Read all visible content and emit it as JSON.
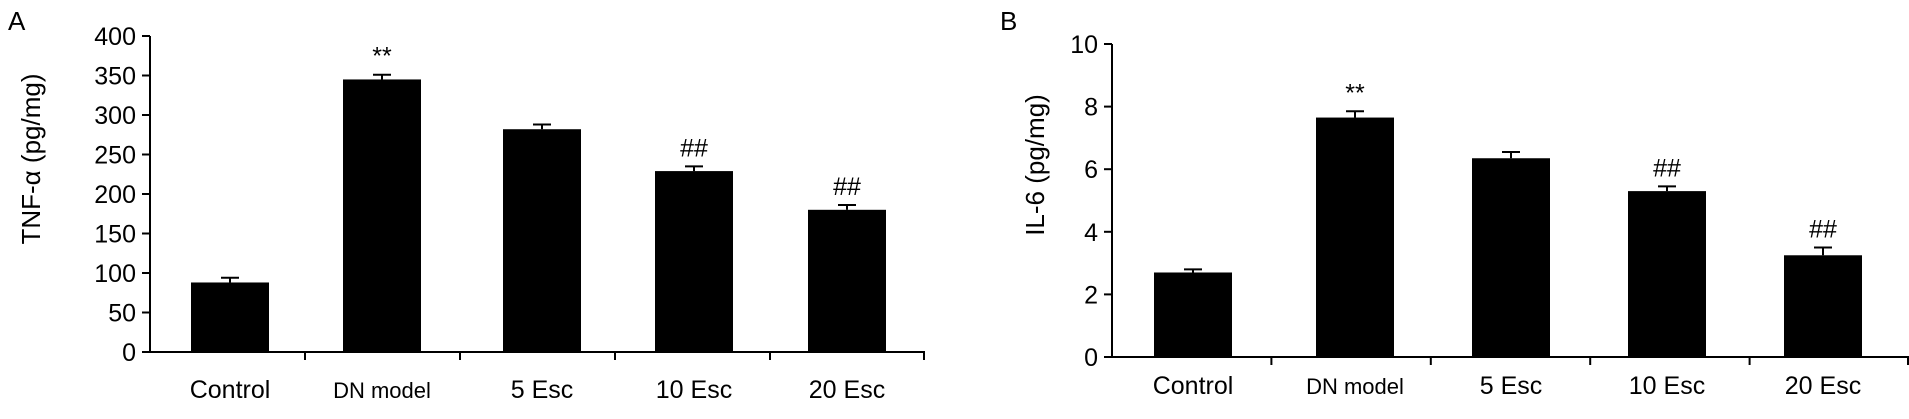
{
  "chart_data": [
    {
      "panel": "A",
      "type": "bar",
      "ylabel": "TNF-α (pg/mg)",
      "ylim": [
        0,
        400
      ],
      "yticks": [
        "0",
        "50",
        "100",
        "150",
        "200",
        "250",
        "300",
        "350",
        "400"
      ],
      "categories": [
        "Control",
        "DN model",
        "5 Esc",
        "10 Esc",
        "20 Esc"
      ],
      "values": [
        88,
        345,
        282,
        229,
        180
      ],
      "errors": [
        6,
        6,
        6,
        6,
        6
      ],
      "annotations": [
        "",
        "**",
        "",
        "##",
        "##"
      ],
      "grid": false,
      "legend": "none",
      "bar_color": "#000000"
    },
    {
      "panel": "B",
      "type": "bar",
      "ylabel": "IL-6 (pg/mg)",
      "ylim": [
        0,
        10
      ],
      "yticks": [
        "0",
        "2",
        "4",
        "6",
        "8",
        "10"
      ],
      "categories": [
        "Control",
        "DN model",
        "5 Esc",
        "10 Esc",
        "20 Esc"
      ],
      "values": [
        2.7,
        7.65,
        6.35,
        5.3,
        3.25
      ],
      "errors": [
        0.1,
        0.2,
        0.2,
        0.15,
        0.25
      ],
      "annotations": [
        "",
        "**",
        "",
        "##",
        "##"
      ],
      "grid": false,
      "legend": "none",
      "bar_color": "#000000"
    }
  ]
}
